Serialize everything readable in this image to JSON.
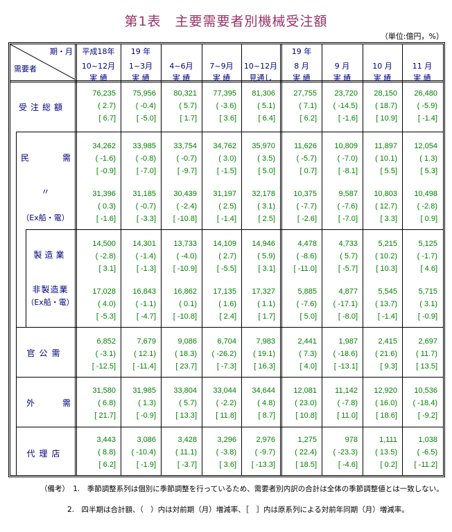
{
  "title": "第1表　主要需要者別機械受注額",
  "unit": "（単位:億円，%）",
  "header": {
    "corner_top": "期・月",
    "corner_bottom": "需要者",
    "columns": [
      [
        "平成18年",
        "10~12月",
        "実 績"
      ],
      [
        "19 年",
        "1~3月",
        "実 績"
      ],
      [
        "",
        "4~6月",
        "実 績"
      ],
      [
        "",
        "7~9月",
        "実 績"
      ],
      [
        "",
        "10~12月",
        "見通し"
      ],
      [
        "19 年",
        "8 月",
        "実 績"
      ],
      [
        "",
        "9 月",
        "実 績"
      ],
      [
        "",
        "10 月",
        "実 績"
      ],
      [
        "",
        "11 月",
        "実 績"
      ]
    ]
  },
  "rows": [
    {
      "key": "total",
      "label": "受注総額",
      "values": [
        [
          "76,235",
          "2.7",
          "6.7"
        ],
        [
          "75,956",
          "-0.4",
          "-5.0"
        ],
        [
          "80,321",
          "5.7",
          "1.7"
        ],
        [
          "77,395",
          "-3.6",
          "3.6"
        ],
        [
          "81,306",
          "5.1",
          "6.4"
        ],
        [
          "27,755",
          "7.1",
          "6.2"
        ],
        [
          "23,720",
          "-14.5",
          "-1.6"
        ],
        [
          "28,150",
          "18.7",
          "10.9"
        ],
        [
          "26,480",
          "-5.9",
          "-1.4"
        ]
      ]
    },
    {
      "key": "private",
      "label": "民需",
      "values": [
        [
          "34,262",
          "-1.6",
          "-0.9"
        ],
        [
          "33,985",
          "-0.8",
          "-7.0"
        ],
        [
          "33,754",
          "-0.7",
          "-9.7"
        ],
        [
          "34,762",
          "3.0",
          "-1.5"
        ],
        [
          "35,970",
          "3.5",
          "5.0"
        ],
        [
          "11,626",
          "-5.7",
          "0.7"
        ],
        [
          "10,809",
          "-7.0",
          "-8.1"
        ],
        [
          "11,897",
          "10.1",
          "5.5"
        ],
        [
          "12,054",
          "1.3",
          "5.3"
        ]
      ]
    },
    {
      "key": "private_ex",
      "label": "〃",
      "sub_label": "（Ex船・電）",
      "values": [
        [
          "31,396",
          "0.3",
          "-1.6"
        ],
        [
          "31,185",
          "-0.7",
          "-3.3"
        ],
        [
          "30,439",
          "-2.4",
          "-10.8"
        ],
        [
          "31,197",
          "2.5",
          "-1.4"
        ],
        [
          "32,178",
          "3.1",
          "2.5"
        ],
        [
          "10,375",
          "-7.7",
          "-2.6"
        ],
        [
          "9,587",
          "-7.6",
          "-7.0"
        ],
        [
          "10,803",
          "12.7",
          "3.3"
        ],
        [
          "10,498",
          "-2.8",
          "0.9"
        ]
      ]
    },
    {
      "key": "manufacturing",
      "label": "製造業",
      "values": [
        [
          "14,500",
          "-2.8",
          "3.1"
        ],
        [
          "14,301",
          "-1.4",
          "-1.3"
        ],
        [
          "13,733",
          "-4.0",
          "-10.9"
        ],
        [
          "14,109",
          "2.7",
          "-5.5"
        ],
        [
          "14,946",
          "5.9",
          "3.1"
        ],
        [
          "4,478",
          "-8.6",
          "-11.0"
        ],
        [
          "4,733",
          "5.7",
          "-5.7"
        ],
        [
          "5,215",
          "10.2",
          "10.3"
        ],
        [
          "5,125",
          "-1.7",
          "4.6"
        ]
      ]
    },
    {
      "key": "non_manufacturing",
      "label": "非製造業",
      "sub_label": "（Ex船・電）",
      "values": [
        [
          "17,028",
          "4.0",
          "-5.3"
        ],
        [
          "16,843",
          "-1.1",
          "-4.7"
        ],
        [
          "16,862",
          "0.1",
          "-10.8"
        ],
        [
          "17,135",
          "1.6",
          "2.4"
        ],
        [
          "17,327",
          "1.1",
          "1.7"
        ],
        [
          "5,885",
          "-7.6",
          "5.0"
        ],
        [
          "4,877",
          "-17.1",
          "-8.0"
        ],
        [
          "5,545",
          "13.7",
          "-1.4"
        ],
        [
          "5,715",
          "3.1",
          "-0.9"
        ]
      ]
    },
    {
      "key": "government",
      "label": "官公需",
      "values": [
        [
          "6,852",
          "-3.1",
          "-12.5"
        ],
        [
          "7,679",
          "12.1",
          "-11.4"
        ],
        [
          "9,086",
          "18.3",
          "23.7"
        ],
        [
          "6,704",
          "-26.2",
          "-7.3"
        ],
        [
          "7,983",
          "19.1",
          "16.3"
        ],
        [
          "2,441",
          "7.3",
          "4.0"
        ],
        [
          "1,987",
          "-18.6",
          "-13.1"
        ],
        [
          "2,415",
          "21.6",
          "9.3"
        ],
        [
          "2,697",
          "11.7",
          "13.5"
        ]
      ]
    },
    {
      "key": "foreign",
      "label": "外需",
      "values": [
        [
          "31,580",
          "6.8",
          "21.7"
        ],
        [
          "31,985",
          "1.3",
          "-0.9"
        ],
        [
          "33,804",
          "5.7",
          "13.3"
        ],
        [
          "33,044",
          "-2.2",
          "11.8"
        ],
        [
          "34,644",
          "4.8",
          "8.7"
        ],
        [
          "12,081",
          "23.0",
          "10.8"
        ],
        [
          "11,142",
          "-7.8",
          "11.0"
        ],
        [
          "12,920",
          "16.0",
          "18.6"
        ],
        [
          "10,536",
          "-18.4",
          "-9.2"
        ]
      ]
    },
    {
      "key": "agency",
      "label": "代理店",
      "values": [
        [
          "3,443",
          "8.8",
          "6.2"
        ],
        [
          "3,086",
          "-10.4",
          "-1.9"
        ],
        [
          "3,428",
          "11.1",
          "-3.7"
        ],
        [
          "3,296",
          "-3.8",
          "3.6"
        ],
        [
          "2,976",
          "-9.7",
          "-13.3"
        ],
        [
          "1,275",
          "22.4",
          "18.5"
        ],
        [
          "978",
          "-23.3",
          "-4.6"
        ],
        [
          "1,111",
          "13.5",
          "0.2"
        ],
        [
          "1,038",
          "-6.5",
          "-11.2"
        ]
      ]
    }
  ],
  "notes": [
    "（備考）　1.　季節調整系列は個別に季節調整を行っているため、需要者別内訳の合計は全体の季節調整値とは一致しない。",
    "2.　四半期は合計額、（　）内は対前期（月）増減率、［　］内は原系列による対前年同期（月）増減率。"
  ],
  "colors": {
    "title": "#993366",
    "label": "#000080",
    "value": "#008000"
  }
}
